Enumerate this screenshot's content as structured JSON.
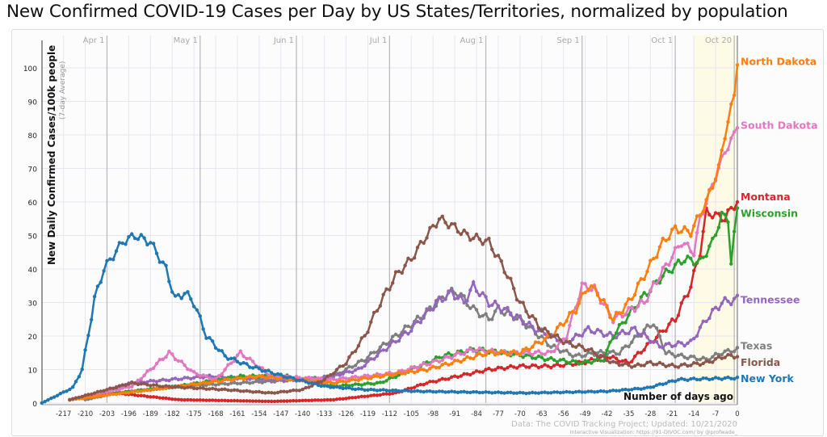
{
  "title": "New Confirmed COVID-19 Cases per Day by US States/Territories, normalized by population",
  "chart_data": {
    "type": "line",
    "title": "New Confirmed COVID-19 Cases per Day by US States/Territories, normalized by population",
    "ylabel": "New Daily Confirmed Cases/100k people",
    "ylabel_sub": "(7-day Average)",
    "xlabel": "Number of days ago",
    "xlim": [
      -223,
      0
    ],
    "ylim": [
      0,
      105
    ],
    "xticks": [
      -217,
      -210,
      -203,
      -196,
      -189,
      -182,
      -175,
      -168,
      -161,
      -154,
      -147,
      -140,
      -133,
      -126,
      -119,
      -112,
      -105,
      -98,
      -91,
      -84,
      -77,
      -70,
      -63,
      -56,
      -49,
      -42,
      -35,
      -28,
      -21,
      -14,
      -7,
      0
    ],
    "yticks": [
      0,
      10,
      20,
      30,
      40,
      50,
      60,
      70,
      80,
      90,
      100
    ],
    "months": [
      {
        "label": "Apr 1",
        "day": -203
      },
      {
        "label": "May 1",
        "day": -173
      },
      {
        "label": "Jun 1",
        "day": -142
      },
      {
        "label": "Jul 1",
        "day": -112
      },
      {
        "label": "Aug 1",
        "day": -81
      },
      {
        "label": "Sep 1",
        "day": -50
      },
      {
        "label": "Oct 1",
        "day": -20
      },
      {
        "label": "Oct 20",
        "day": -1
      }
    ],
    "source": "Data: The COVID Tracking Project; Updated: 10/21/2020",
    "credit": "Interactive Visualization: https://91-DIVOC.com/ by @profwade_",
    "series": [
      {
        "name": "Montana",
        "color": "#d62728",
        "points": [
          [
            -215,
            1
          ],
          [
            -200,
            3
          ],
          [
            -180,
            1
          ],
          [
            -150,
            0.5
          ],
          [
            -130,
            1
          ],
          [
            -110,
            3
          ],
          [
            -100,
            6
          ],
          [
            -90,
            8
          ],
          [
            -80,
            10
          ],
          [
            -70,
            11
          ],
          [
            -60,
            11
          ],
          [
            -50,
            12
          ],
          [
            -42,
            14
          ],
          [
            -35,
            12
          ],
          [
            -28,
            18
          ],
          [
            -20,
            25
          ],
          [
            -15,
            35
          ],
          [
            -12,
            45
          ],
          [
            -10,
            57
          ],
          [
            -4,
            55
          ],
          [
            -2,
            58
          ],
          [
            0,
            60
          ]
        ]
      },
      {
        "name": "Texas",
        "color": "#7f7f7f",
        "points": [
          [
            -210,
            1
          ],
          [
            -200,
            3
          ],
          [
            -180,
            5
          ],
          [
            -160,
            6
          ],
          [
            -140,
            7
          ],
          [
            -130,
            8
          ],
          [
            -120,
            13
          ],
          [
            -110,
            20
          ],
          [
            -100,
            27
          ],
          [
            -93,
            33
          ],
          [
            -90,
            33
          ],
          [
            -85,
            28
          ],
          [
            -80,
            25
          ],
          [
            -77,
            28
          ],
          [
            -70,
            25
          ],
          [
            -60,
            17
          ],
          [
            -52,
            14
          ],
          [
            -45,
            15
          ],
          [
            -38,
            15
          ],
          [
            -32,
            20
          ],
          [
            -27,
            24
          ],
          [
            -23,
            15
          ],
          [
            -18,
            14
          ],
          [
            -10,
            13
          ],
          [
            -5,
            15
          ],
          [
            0,
            16
          ]
        ]
      },
      {
        "name": "Tennessee",
        "color": "#9467bd",
        "points": [
          [
            -210,
            2
          ],
          [
            -195,
            6
          ],
          [
            -170,
            8
          ],
          [
            -150,
            7
          ],
          [
            -135,
            7
          ],
          [
            -122,
            10
          ],
          [
            -115,
            15
          ],
          [
            -105,
            22
          ],
          [
            -97,
            30
          ],
          [
            -92,
            33
          ],
          [
            -88,
            30
          ],
          [
            -85,
            35
          ],
          [
            -80,
            30
          ],
          [
            -75,
            28
          ],
          [
            -65,
            22
          ],
          [
            -55,
            18
          ],
          [
            -48,
            22
          ],
          [
            -40,
            20
          ],
          [
            -33,
            22
          ],
          [
            -25,
            17
          ],
          [
            -15,
            18
          ],
          [
            -10,
            25
          ],
          [
            -5,
            30
          ],
          [
            0,
            31
          ]
        ]
      },
      {
        "name": "Wisconsin",
        "color": "#2ca02c",
        "points": [
          [
            -215,
            1
          ],
          [
            -200,
            3
          ],
          [
            -180,
            5
          ],
          [
            -160,
            8
          ],
          [
            -145,
            8
          ],
          [
            -130,
            5
          ],
          [
            -115,
            6
          ],
          [
            -105,
            10
          ],
          [
            -95,
            14
          ],
          [
            -85,
            16
          ],
          [
            -75,
            15
          ],
          [
            -60,
            13
          ],
          [
            -50,
            12
          ],
          [
            -43,
            13
          ],
          [
            -40,
            20
          ],
          [
            -32,
            30
          ],
          [
            -24,
            38
          ],
          [
            -17,
            43
          ],
          [
            -12,
            42
          ],
          [
            -8,
            48
          ],
          [
            -5,
            56
          ],
          [
            -3,
            55
          ],
          [
            -2,
            42
          ],
          [
            0,
            58
          ]
        ]
      },
      {
        "name": "South Dakota",
        "color": "#e377c2",
        "points": [
          [
            -215,
            1
          ],
          [
            -195,
            5
          ],
          [
            -183,
            15
          ],
          [
            -175,
            9
          ],
          [
            -168,
            7
          ],
          [
            -160,
            15
          ],
          [
            -150,
            8
          ],
          [
            -130,
            7
          ],
          [
            -110,
            9
          ],
          [
            -95,
            13
          ],
          [
            -85,
            16
          ],
          [
            -75,
            15
          ],
          [
            -60,
            15
          ],
          [
            -55,
            20
          ],
          [
            -50,
            35
          ],
          [
            -46,
            34
          ],
          [
            -40,
            25
          ],
          [
            -30,
            30
          ],
          [
            -25,
            38
          ],
          [
            -18,
            48
          ],
          [
            -14,
            45
          ],
          [
            -12,
            55
          ],
          [
            -8,
            65
          ],
          [
            -4,
            75
          ],
          [
            -1,
            80
          ],
          [
            0,
            83
          ]
        ]
      },
      {
        "name": "North Dakota",
        "color": "#ff7f0e",
        "points": [
          [
            -215,
            1
          ],
          [
            -180,
            5
          ],
          [
            -155,
            8
          ],
          [
            -130,
            6
          ],
          [
            -100,
            10
          ],
          [
            -80,
            15
          ],
          [
            -70,
            15
          ],
          [
            -60,
            20
          ],
          [
            -52,
            28
          ],
          [
            -48,
            35
          ],
          [
            -45,
            33
          ],
          [
            -40,
            25
          ],
          [
            -35,
            30
          ],
          [
            -30,
            38
          ],
          [
            -24,
            48
          ],
          [
            -20,
            52
          ],
          [
            -15,
            51
          ],
          [
            -10,
            60
          ],
          [
            -6,
            70
          ],
          [
            -4,
            80
          ],
          [
            -1,
            92
          ],
          [
            0,
            102
          ]
        ]
      },
      {
        "name": "Florida",
        "color": "#8c564b",
        "points": [
          [
            -215,
            1
          ],
          [
            -203,
            4
          ],
          [
            -195,
            6
          ],
          [
            -185,
            5
          ],
          [
            -165,
            4
          ],
          [
            -150,
            3
          ],
          [
            -140,
            4
          ],
          [
            -133,
            7
          ],
          [
            -126,
            12
          ],
          [
            -120,
            20
          ],
          [
            -115,
            30
          ],
          [
            -110,
            38
          ],
          [
            -105,
            43
          ],
          [
            -100,
            50
          ],
          [
            -96,
            55
          ],
          [
            -92,
            53
          ],
          [
            -87,
            50
          ],
          [
            -80,
            48
          ],
          [
            -75,
            40
          ],
          [
            -70,
            30
          ],
          [
            -63,
            22
          ],
          [
            -55,
            18
          ],
          [
            -48,
            16
          ],
          [
            -40,
            12
          ],
          [
            -33,
            11
          ],
          [
            -28,
            12
          ],
          [
            -20,
            11
          ],
          [
            -10,
            12
          ],
          [
            -4,
            14
          ],
          [
            0,
            14
          ]
        ]
      },
      {
        "name": "New York",
        "color": "#1f77b4",
        "points": [
          [
            -224,
            0
          ],
          [
            -214,
            4.6
          ],
          [
            -211,
            10
          ],
          [
            -207,
            31
          ],
          [
            -204,
            40
          ],
          [
            -198,
            48
          ],
          [
            -194,
            50
          ],
          [
            -189,
            48
          ],
          [
            -184,
            40
          ],
          [
            -181,
            31
          ],
          [
            -178,
            33
          ],
          [
            -175,
            30
          ],
          [
            -171,
            20
          ],
          [
            -165,
            14
          ],
          [
            -157,
            11
          ],
          [
            -146,
            8
          ],
          [
            -133,
            5
          ],
          [
            -120,
            4
          ],
          [
            -102,
            3.5
          ],
          [
            -68,
            3
          ],
          [
            -42,
            3.5
          ],
          [
            -29,
            4.5
          ],
          [
            -19,
            7
          ],
          [
            0,
            7.5
          ]
        ]
      }
    ]
  }
}
